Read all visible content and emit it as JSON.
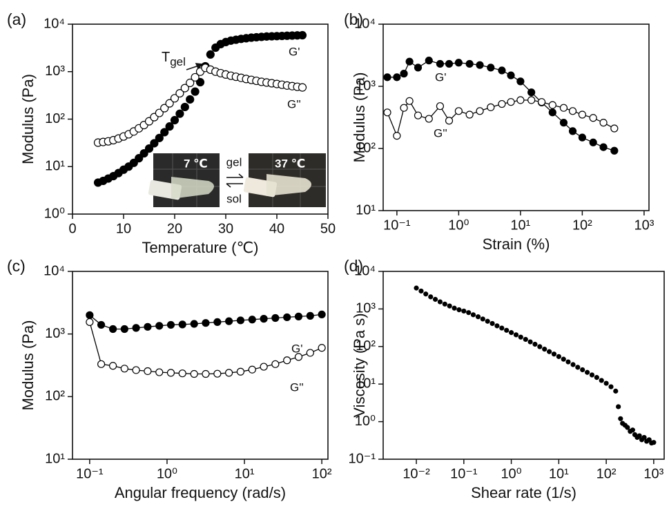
{
  "chart_data": [
    {
      "type": "scatter",
      "panel": "(a)",
      "xlabel": "Temperature (℃)",
      "ylabel": "Modulus (Pa)",
      "xlim": [
        0,
        50
      ],
      "xticks": [
        0,
        10,
        20,
        30,
        40,
        50
      ],
      "yscale": "log",
      "ylim": [
        1,
        10000
      ],
      "yticks": [
        {
          "value": 1,
          "label": "10⁰"
        },
        {
          "value": 10,
          "label": "10¹"
        },
        {
          "value": 100,
          "label": "10²"
        },
        {
          "value": 1000,
          "label": "10³"
        },
        {
          "value": 10000,
          "label": "10⁴"
        }
      ],
      "x": [
        5,
        6,
        7,
        8,
        9,
        10,
        11,
        12,
        13,
        14,
        15,
        16,
        17,
        18,
        19,
        20,
        21,
        22,
        23,
        24,
        25,
        26,
        27,
        28,
        29,
        30,
        31,
        32,
        33,
        34,
        35,
        36,
        37,
        38,
        39,
        40,
        41,
        42,
        43,
        44,
        45
      ],
      "series": [
        {
          "name": "G'",
          "color": "#000000",
          "marker_fill": "#000000",
          "values": [
            4.6,
            5.0,
            5.6,
            6.3,
            7.3,
            8.6,
            10,
            12,
            15,
            19,
            24,
            31,
            40,
            53,
            70,
            95,
            130,
            180,
            260,
            380,
            600,
            1300,
            2300,
            3200,
            3800,
            4200,
            4500,
            4700,
            4900,
            5050,
            5200,
            5300,
            5400,
            5500,
            5550,
            5600,
            5650,
            5700,
            5750,
            5800,
            5850
          ]
        },
        {
          "name": "G''",
          "color": "#000000",
          "marker_fill": "#ffffff",
          "values": [
            32,
            33,
            34,
            36,
            39,
            43,
            48,
            55,
            64,
            75,
            90,
            110,
            135,
            170,
            215,
            275,
            350,
            450,
            580,
            760,
            1000,
            1200,
            1100,
            1000,
            930,
            870,
            820,
            780,
            740,
            700,
            670,
            640,
            610,
            590,
            570,
            550,
            530,
            510,
            495,
            480,
            465
          ]
        }
      ],
      "annotations": {
        "transition": {
          "text": "T",
          "subscript": "gel"
        },
        "inset": {
          "cold": "7 ℃",
          "warm": "37 ℃",
          "forward": "gel",
          "reverse": "sol"
        }
      }
    },
    {
      "type": "line",
      "panel": "(b)",
      "xlabel": "Strain (%)",
      "ylabel": "Modulus (Pa)",
      "xscale": "log",
      "xlim": [
        0.06,
        1200
      ],
      "xticks": [
        {
          "value": 0.1,
          "label": "10⁻¹"
        },
        {
          "value": 1,
          "label": "10⁰"
        },
        {
          "value": 10,
          "label": "10¹"
        },
        {
          "value": 100,
          "label": "10²"
        },
        {
          "value": 1000,
          "label": "10³"
        }
      ],
      "yscale": "log",
      "ylim": [
        10,
        10000
      ],
      "yticks": [
        {
          "value": 10,
          "label": "10¹"
        },
        {
          "value": 100,
          "label": "10²"
        },
        {
          "value": 1000,
          "label": "10³"
        },
        {
          "value": 10000,
          "label": "10⁴"
        }
      ],
      "x": [
        0.07,
        0.1,
        0.13,
        0.16,
        0.22,
        0.33,
        0.5,
        0.7,
        1,
        1.5,
        2.2,
        3.3,
        5,
        7,
        10,
        15,
        22,
        33,
        50,
        70,
        100,
        150,
        220,
        330
      ],
      "series": [
        {
          "name": "G'",
          "color": "#000000",
          "marker_fill": "#000000",
          "values": [
            1400,
            1400,
            1600,
            2500,
            2000,
            2600,
            2300,
            2300,
            2400,
            2300,
            2200,
            2000,
            1800,
            1500,
            1200,
            800,
            550,
            380,
            260,
            190,
            150,
            125,
            105,
            92
          ]
        },
        {
          "name": "G''",
          "color": "#000000",
          "marker_fill": "#ffffff",
          "values": [
            380,
            160,
            450,
            580,
            340,
            300,
            480,
            280,
            400,
            350,
            400,
            460,
            520,
            560,
            600,
            600,
            560,
            500,
            450,
            400,
            350,
            310,
            260,
            210
          ]
        }
      ]
    },
    {
      "type": "line",
      "panel": "(c)",
      "xlabel": "Angular frequency (rad/s)",
      "ylabel": "Modulus (Pa)",
      "xscale": "log",
      "xlim": [
        0.06,
        120
      ],
      "xticks": [
        {
          "value": 0.1,
          "label": "10⁻¹"
        },
        {
          "value": 1,
          "label": "10⁰"
        },
        {
          "value": 10,
          "label": "10¹"
        },
        {
          "value": 100,
          "label": "10²"
        }
      ],
      "yscale": "log",
      "ylim": [
        10,
        10000
      ],
      "yticks": [
        {
          "value": 10,
          "label": "10¹"
        },
        {
          "value": 100,
          "label": "10²"
        },
        {
          "value": 1000,
          "label": "10³"
        },
        {
          "value": 10000,
          "label": "10⁴"
        }
      ],
      "x": [
        0.1,
        0.141,
        0.2,
        0.282,
        0.398,
        0.562,
        0.794,
        1.12,
        1.58,
        2.24,
        3.16,
        4.47,
        6.31,
        8.91,
        12.6,
        17.8,
        25.1,
        35.5,
        50.1,
        70.8,
        100
      ],
      "series": [
        {
          "name": "G'",
          "color": "#000000",
          "marker_fill": "#000000",
          "values": [
            2000,
            1400,
            1200,
            1200,
            1250,
            1300,
            1350,
            1400,
            1420,
            1450,
            1500,
            1550,
            1600,
            1650,
            1700,
            1750,
            1800,
            1850,
            1900,
            1950,
            2050
          ]
        },
        {
          "name": "G''",
          "color": "#000000",
          "marker_fill": "#ffffff",
          "values": [
            1550,
            330,
            310,
            280,
            265,
            255,
            245,
            240,
            235,
            230,
            230,
            232,
            240,
            250,
            270,
            300,
            330,
            380,
            430,
            500,
            600
          ]
        }
      ]
    },
    {
      "type": "scatter",
      "panel": "(d)",
      "xlabel": "Shear rate (1/s)",
      "ylabel": "Viscosity (Pa s)",
      "xscale": "log",
      "xlim": [
        0.002,
        1660
      ],
      "xticks": [
        {
          "value": 0.01,
          "label": "10⁻²"
        },
        {
          "value": 0.1,
          "label": "10⁻¹"
        },
        {
          "value": 1,
          "label": "10⁰"
        },
        {
          "value": 10,
          "label": "10¹"
        },
        {
          "value": 100,
          "label": "10²"
        },
        {
          "value": 1000,
          "label": "10³"
        }
      ],
      "yscale": "log",
      "ylim": [
        0.1,
        10000
      ],
      "yticks": [
        {
          "value": 0.1,
          "label": "10⁻¹"
        },
        {
          "value": 1,
          "label": "10⁰"
        },
        {
          "value": 10,
          "label": "10¹"
        },
        {
          "value": 100,
          "label": "10²"
        },
        {
          "value": 1000,
          "label": "10³"
        },
        {
          "value": 10000,
          "label": "10⁴"
        }
      ],
      "color": "#000000",
      "x": [
        0.01,
        0.0126,
        0.0158,
        0.02,
        0.0251,
        0.0316,
        0.0398,
        0.0501,
        0.0631,
        0.0794,
        0.1,
        0.126,
        0.158,
        0.2,
        0.251,
        0.316,
        0.398,
        0.501,
        0.631,
        0.794,
        1,
        1.26,
        1.58,
        2,
        2.51,
        3.16,
        3.98,
        5.01,
        6.31,
        7.94,
        10,
        12.6,
        15.8,
        20,
        25.1,
        31.6,
        39.8,
        50.1,
        63.1,
        79.4,
        100,
        126,
        158,
        180,
        200,
        220,
        250,
        280,
        320,
        360,
        400,
        450,
        500,
        560,
        630,
        710,
        800,
        900,
        1000
      ],
      "values": [
        3600,
        3000,
        2500,
        2100,
        1800,
        1550,
        1350,
        1200,
        1050,
        950,
        880,
        800,
        700,
        620,
        540,
        470,
        410,
        355,
        310,
        270,
        235,
        205,
        178,
        155,
        133,
        115,
        99,
        85,
        73,
        63,
        54,
        46,
        39,
        33,
        28,
        24,
        20.5,
        17.5,
        15,
        12.5,
        10.5,
        8.5,
        6.5,
        2.5,
        1.2,
        0.9,
        0.8,
        0.7,
        0.55,
        0.6,
        0.45,
        0.38,
        0.42,
        0.33,
        0.38,
        0.3,
        0.33,
        0.27,
        0.28
      ]
    }
  ]
}
